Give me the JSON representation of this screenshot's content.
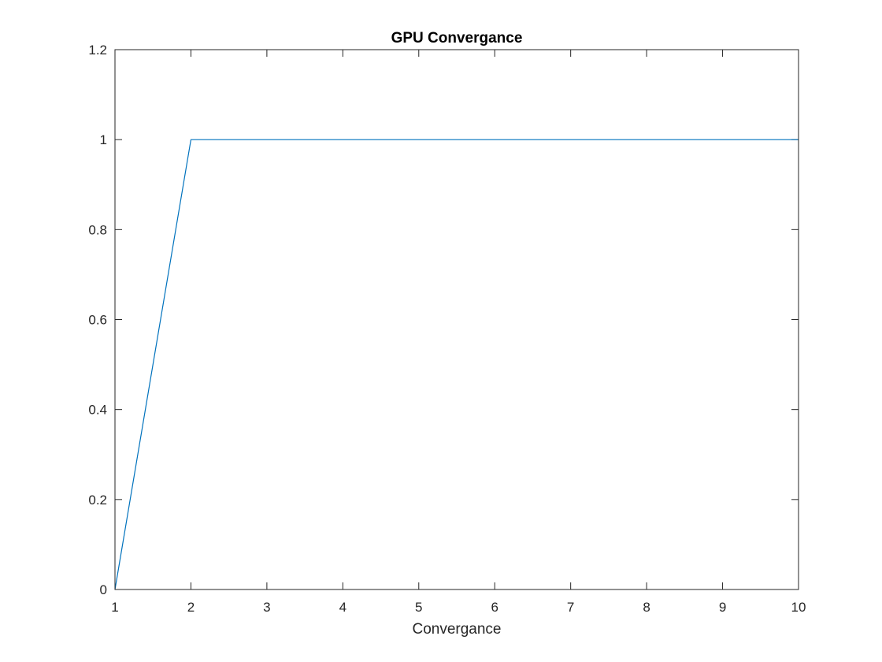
{
  "chart_data": {
    "type": "line",
    "title": "GPU Convergance",
    "xlabel": "Convergance",
    "ylabel": "",
    "xlim": [
      1,
      10
    ],
    "ylim": [
      0,
      1.2
    ],
    "x_ticks": [
      "1",
      "2",
      "3",
      "4",
      "5",
      "6",
      "7",
      "8",
      "9",
      "10"
    ],
    "y_ticks": [
      "0",
      "0.2",
      "0.4",
      "0.6",
      "0.8",
      "1",
      "1.2"
    ],
    "grid": false,
    "legend": "none",
    "series": [
      {
        "x": [
          1,
          2,
          3,
          4,
          5,
          6,
          7,
          8,
          9,
          10
        ],
        "values": [
          0,
          1,
          1,
          1,
          1,
          1,
          1,
          1,
          1,
          1
        ],
        "color": "#0072BD"
      }
    ],
    "colors": {
      "axis": "#262626",
      "background": "#ffffff",
      "line": "#0072BD"
    }
  }
}
